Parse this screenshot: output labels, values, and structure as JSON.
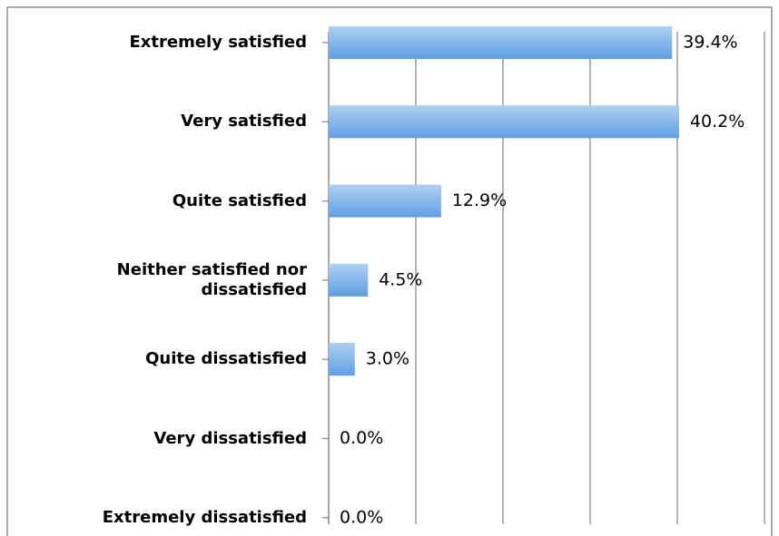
{
  "chart_data": {
    "type": "bar",
    "orientation": "horizontal",
    "categories": [
      "Extremely satisfied",
      "Very satisfied",
      "Quite satisfied",
      "Neither satisfied nor dissatisfied",
      "Quite dissatisfied",
      "Very dissatisfied",
      "Extremely dissatisfied"
    ],
    "values": [
      39.4,
      40.2,
      12.9,
      4.5,
      3.0,
      0.0,
      0.0
    ],
    "value_labels": [
      "39.4%",
      "40.2%",
      "12.9%",
      "4.5%",
      "3.0%",
      "0.0%",
      "0.0%"
    ],
    "color": "#5f9fe3",
    "xlim": [
      0,
      50
    ],
    "xticks": [
      0,
      10,
      20,
      30,
      40,
      50
    ],
    "grid": true
  }
}
